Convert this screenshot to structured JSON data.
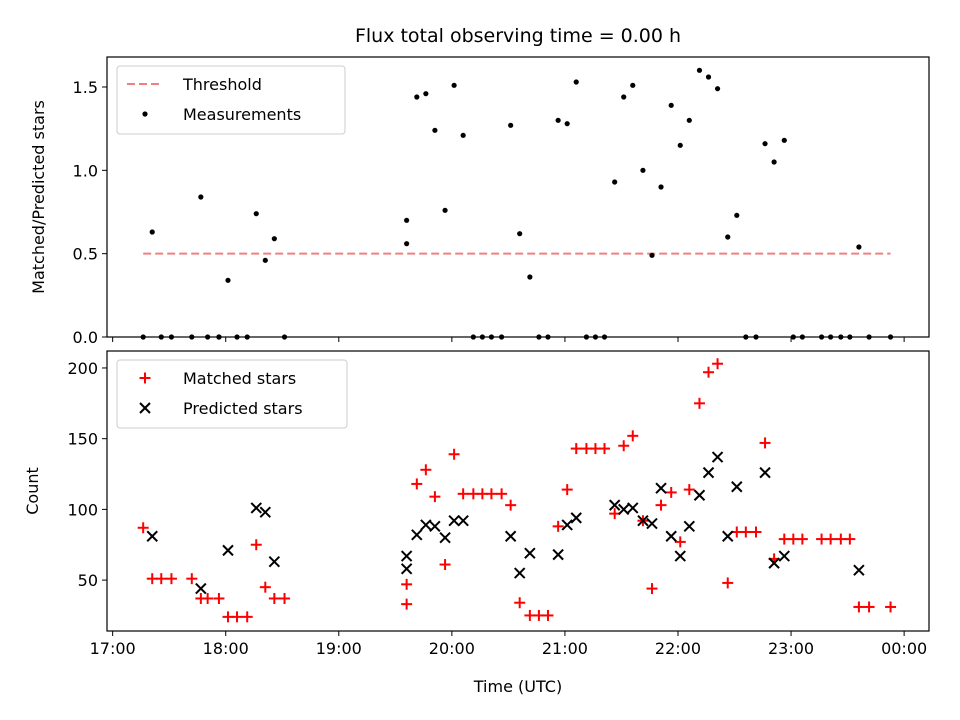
{
  "chart_data": {
    "title": "Flux total observing time = 0.00 h",
    "xlabel": "Time (UTC)",
    "x_units": "hours UTC (24 = 00:00 next day)",
    "xlim": [
      16.95,
      24.22
    ],
    "x_ticks": [
      17,
      18,
      19,
      20,
      21,
      22,
      23,
      24
    ],
    "x_tick_labels": [
      "17:00",
      "18:00",
      "19:00",
      "20:00",
      "21:00",
      "22:00",
      "23:00",
      "00:00"
    ],
    "panels": [
      {
        "type": "scatter",
        "ylabel": "Matched/Predicted stars",
        "ylim": [
          0,
          1.68
        ],
        "y_ticks": [
          0.0,
          0.5,
          1.0,
          1.5
        ],
        "y_tick_labels": [
          "0.0",
          "0.5",
          "1.0",
          "1.5"
        ],
        "legend_position": "top-left",
        "threshold": {
          "name": "Threshold",
          "value": 0.5,
          "x_range": [
            17.27,
            23.88
          ],
          "color": "#f08080"
        },
        "series": [
          {
            "name": "Measurements",
            "marker": "dot",
            "color": "#000000",
            "x": [
              17.27,
              17.35,
              17.43,
              17.52,
              17.7,
              17.78,
              17.84,
              17.94,
              17.94,
              18.02,
              18.1,
              18.19,
              18.27,
              18.35,
              18.43,
              18.52,
              19.6,
              19.6,
              19.69,
              19.77,
              19.85,
              19.94,
              20.02,
              20.1,
              20.19,
              20.27,
              20.35,
              20.44,
              20.52,
              20.6,
              20.69,
              20.77,
              20.85,
              20.94,
              21.02,
              21.1,
              21.19,
              21.27,
              21.35,
              21.44,
              21.52,
              21.6,
              21.69,
              21.77,
              21.85,
              21.94,
              22.02,
              22.1,
              22.19,
              22.27,
              22.35,
              22.44,
              22.52,
              22.6,
              22.69,
              22.77,
              22.85,
              22.94,
              23.02,
              23.1,
              23.27,
              23.35,
              23.44,
              23.52,
              23.6,
              23.69,
              23.88
            ],
            "y": [
              0,
              0.63,
              0,
              0,
              0,
              0.84,
              0,
              0,
              0,
              0.34,
              0,
              0,
              0.74,
              0.46,
              0.59,
              0,
              0.7,
              0.56,
              1.44,
              1.46,
              1.24,
              0.76,
              1.51,
              1.21,
              0,
              0,
              0,
              0,
              1.27,
              0.62,
              0.36,
              0,
              0,
              1.3,
              1.28,
              1.53,
              0,
              0,
              0,
              0.93,
              1.44,
              1.51,
              1.0,
              0.49,
              0.9,
              1.39,
              1.15,
              1.3,
              1.6,
              1.56,
              1.49,
              0.6,
              0.73,
              0,
              0,
              1.16,
              1.05,
              1.18,
              0,
              0,
              0,
              0,
              0,
              0,
              0.54,
              0,
              0
            ]
          }
        ]
      },
      {
        "type": "scatter",
        "ylabel": "Count",
        "ylim": [
          14,
          212
        ],
        "y_ticks": [
          50,
          100,
          150,
          200
        ],
        "y_tick_labels": [
          "50",
          "100",
          "150",
          "200"
        ],
        "legend_position": "top-left",
        "series": [
          {
            "name": "Matched stars",
            "marker": "plus",
            "color": "#ff0000",
            "x": [
              17.27,
              17.35,
              17.43,
              17.52,
              17.7,
              17.78,
              17.84,
              17.94,
              18.02,
              18.1,
              18.19,
              18.27,
              18.35,
              18.43,
              18.52,
              19.6,
              19.6,
              19.69,
              19.77,
              19.85,
              19.94,
              20.02,
              20.1,
              20.19,
              20.27,
              20.35,
              20.44,
              20.52,
              20.6,
              20.69,
              20.77,
              20.85,
              20.94,
              21.02,
              21.1,
              21.19,
              21.27,
              21.35,
              21.44,
              21.52,
              21.6,
              21.69,
              21.77,
              21.85,
              21.94,
              22.02,
              22.1,
              22.19,
              22.27,
              22.35,
              22.44,
              22.52,
              22.6,
              22.69,
              22.77,
              22.85,
              22.94,
              23.02,
              23.1,
              23.27,
              23.35,
              23.44,
              23.52,
              23.6,
              23.69,
              23.88
            ],
            "y": [
              87,
              51,
              51,
              51,
              51,
              37,
              37,
              37,
              24,
              24,
              24,
              75,
              45,
              37,
              37,
              47,
              33,
              118,
              128,
              109,
              61,
              139,
              111,
              111,
              111,
              111,
              111,
              103,
              34,
              25,
              25,
              25,
              88,
              114,
              143,
              143,
              143,
              143,
              97,
              145,
              152,
              92,
              44,
              103,
              112,
              77,
              114,
              175,
              197,
              203,
              48,
              84,
              84,
              84,
              147,
              65,
              79,
              79,
              79,
              79,
              79,
              79,
              79,
              31,
              31,
              31
            ]
          },
          {
            "name": "Predicted stars",
            "marker": "x",
            "color": "#000000",
            "x": [
              17.35,
              17.78,
              18.02,
              18.27,
              18.35,
              18.43,
              19.6,
              19.6,
              19.69,
              19.77,
              19.85,
              19.94,
              20.02,
              20.1,
              20.52,
              20.6,
              20.69,
              20.94,
              21.02,
              21.1,
              21.44,
              21.52,
              21.6,
              21.69,
              21.77,
              21.85,
              21.94,
              22.02,
              22.1,
              22.19,
              22.27,
              22.35,
              22.44,
              22.52,
              22.77,
              22.85,
              22.94,
              23.6
            ],
            "y": [
              81,
              44,
              71,
              101,
              98,
              63,
              67,
              58,
              82,
              89,
              88,
              80,
              92,
              92,
              81,
              55,
              69,
              68,
              89,
              94,
              103,
              100,
              101,
              92,
              90,
              115,
              81,
              67,
              88,
              110,
              126,
              137,
              81,
              116,
              126,
              62,
              67,
              57
            ]
          }
        ]
      }
    ]
  }
}
